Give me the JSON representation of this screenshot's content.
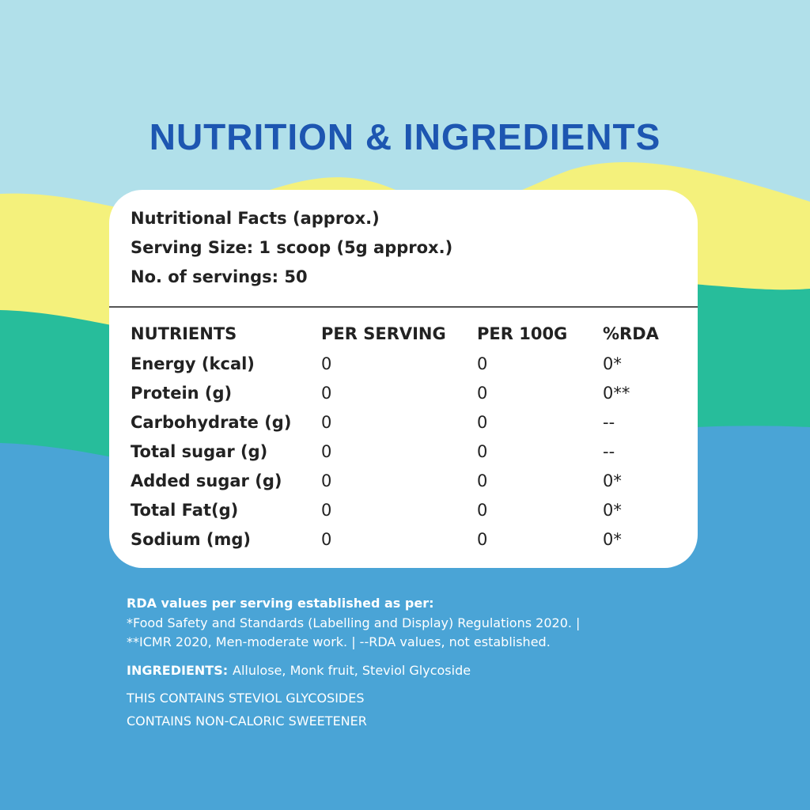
{
  "header": {
    "title": "NUTRITION & INGREDIENTS"
  },
  "card": {
    "lines": [
      "Nutritional Facts (approx.)",
      "Serving Size: 1 scoop (5g approx.)",
      "No. of servings: 50"
    ]
  },
  "table": {
    "columns": [
      "NUTRIENTS",
      "PER SERVING",
      "PER 100G",
      "%RDA"
    ],
    "rows": [
      [
        "Energy (kcal)",
        "0",
        "0",
        "0*"
      ],
      [
        "Protein (g)",
        "0",
        "0",
        "0**"
      ],
      [
        "Carbohydrate (g)",
        "0",
        "0",
        "--"
      ],
      [
        "Total sugar (g)",
        "0",
        "0",
        "--"
      ],
      [
        "Added sugar (g)",
        "0",
        "0",
        "0*"
      ],
      [
        "Total Fat(g)",
        "0",
        "0",
        "0*"
      ],
      [
        "Sodium (mg)",
        "0",
        "0",
        "0*"
      ]
    ]
  },
  "footer": {
    "rda_title": "RDA values per serving established as per:",
    "rda_lines": [
      "*Food Safety and Standards (Labelling and Display) Regulations 2020.  |",
      "**ICMR 2020, Men-moderate work.  |  --RDA values, not established."
    ],
    "ingredients": {
      "label": "INGREDIENTS:",
      "text": "Allulose, Monk fruit, Steviol Glycoside"
    },
    "notes": [
      "THIS CONTAINS STEVIOL GLYCOSIDES",
      "CONTAINS NON-CALORIC SWEETENER"
    ]
  }
}
